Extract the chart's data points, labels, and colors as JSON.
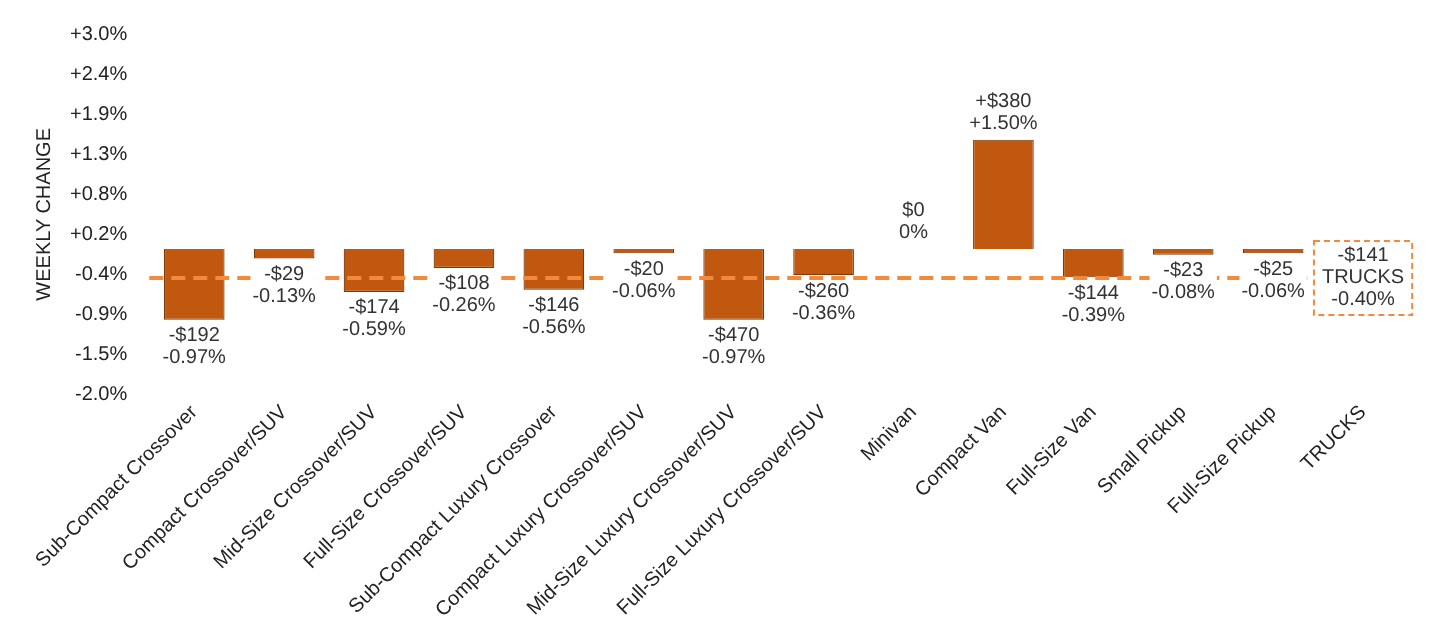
{
  "chart_data": {
    "type": "bar",
    "ylabel": "WEEKLY CHANGE",
    "categories": [
      "Sub-Compact Crossover",
      "Compact Crossover/SUV",
      "Mid-Size Crossover/SUV",
      "Full-Size Crossover/SUV",
      "Sub-Compact Luxury Crossover",
      "Compact Luxury Crossover/SUV",
      "Mid-Size Luxury Crossover/SUV",
      "Full-Size Luxury Crossover/SUV",
      "Minivan",
      "Compact Van",
      "Full-Size Van",
      "Small Pickup",
      "Full-Size Pickup",
      "TRUCKS"
    ],
    "series": [
      {
        "color": "#c0580f",
        "values": [
          -0.97,
          -0.13,
          -0.59,
          -0.26,
          -0.56,
          -0.06,
          -0.97,
          -0.36,
          0,
          1.5,
          -0.39,
          -0.08,
          -0.06,
          null
        ],
        "value_labels": [
          "-$192\n-0.97%",
          "-$29\n-0.13%",
          "-$174\n-0.59%",
          "-$108\n-0.26%",
          "-$146\n-0.56%",
          "-$20\n-0.06%",
          "-$470\n-0.97%",
          "-$260\n-0.36%",
          "$0\n0%",
          "+$380\n+1.50%",
          "-$144\n-0.39%",
          "-$23\n-0.08%",
          "-$25\n-0.06%",
          null
        ]
      }
    ],
    "ylim": [
      -2.0,
      2.95
    ],
    "yticks": [
      {
        "value": -2.0,
        "label": "-2.0%"
      },
      {
        "value": -1.45,
        "label": "-1.5%"
      },
      {
        "value": -0.9,
        "label": "-0.9%"
      },
      {
        "value": -0.35,
        "label": "-0.4%"
      },
      {
        "value": 0.2,
        "label": "+0.2%"
      },
      {
        "value": 0.75,
        "label": "+0.8%"
      },
      {
        "value": 1.3,
        "label": "+1.3%"
      },
      {
        "value": 1.85,
        "label": "+1.9%"
      },
      {
        "value": 2.4,
        "label": "+2.4%"
      },
      {
        "value": 2.95,
        "label": "+3.0%"
      }
    ],
    "ref_lines": [
      {
        "axis": "y",
        "value": -0.4,
        "label": "-$141\nTRUCKS\n-0.40%",
        "color": "#f08a3c",
        "line_style": "dashed"
      }
    ],
    "grid": false,
    "legend": false
  }
}
